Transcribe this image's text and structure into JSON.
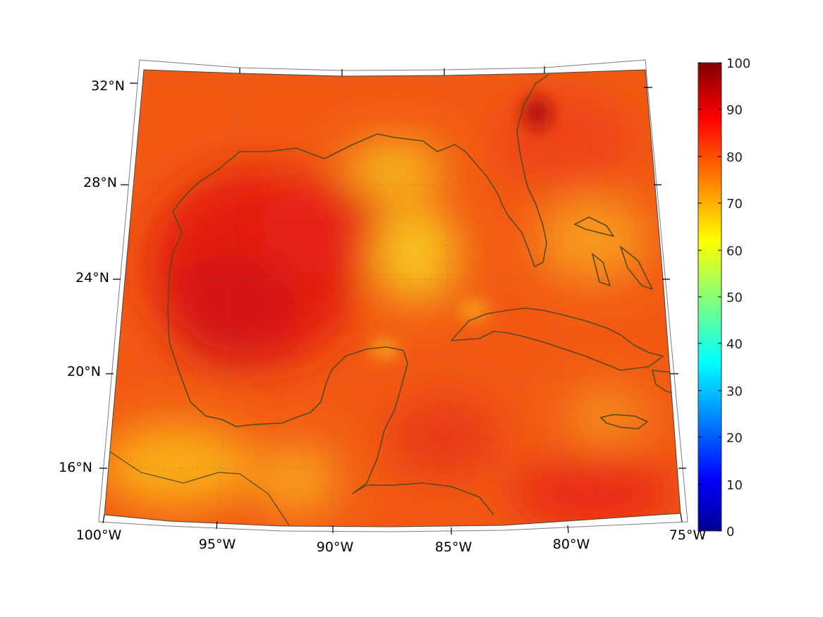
{
  "map": {
    "lon_labels": [
      "100°W",
      "95°W",
      "90°W",
      "85°W",
      "80°W",
      "75°W"
    ],
    "lat_labels": [
      "32°N",
      "28°N",
      "24°N",
      "20°N",
      "16°N"
    ]
  },
  "colorbar": {
    "ticks": [
      "100",
      "90",
      "80",
      "70",
      "60",
      "50",
      "40",
      "30",
      "20",
      "10",
      "0"
    ],
    "min": 0,
    "max": 100,
    "colormap": "jet"
  }
}
